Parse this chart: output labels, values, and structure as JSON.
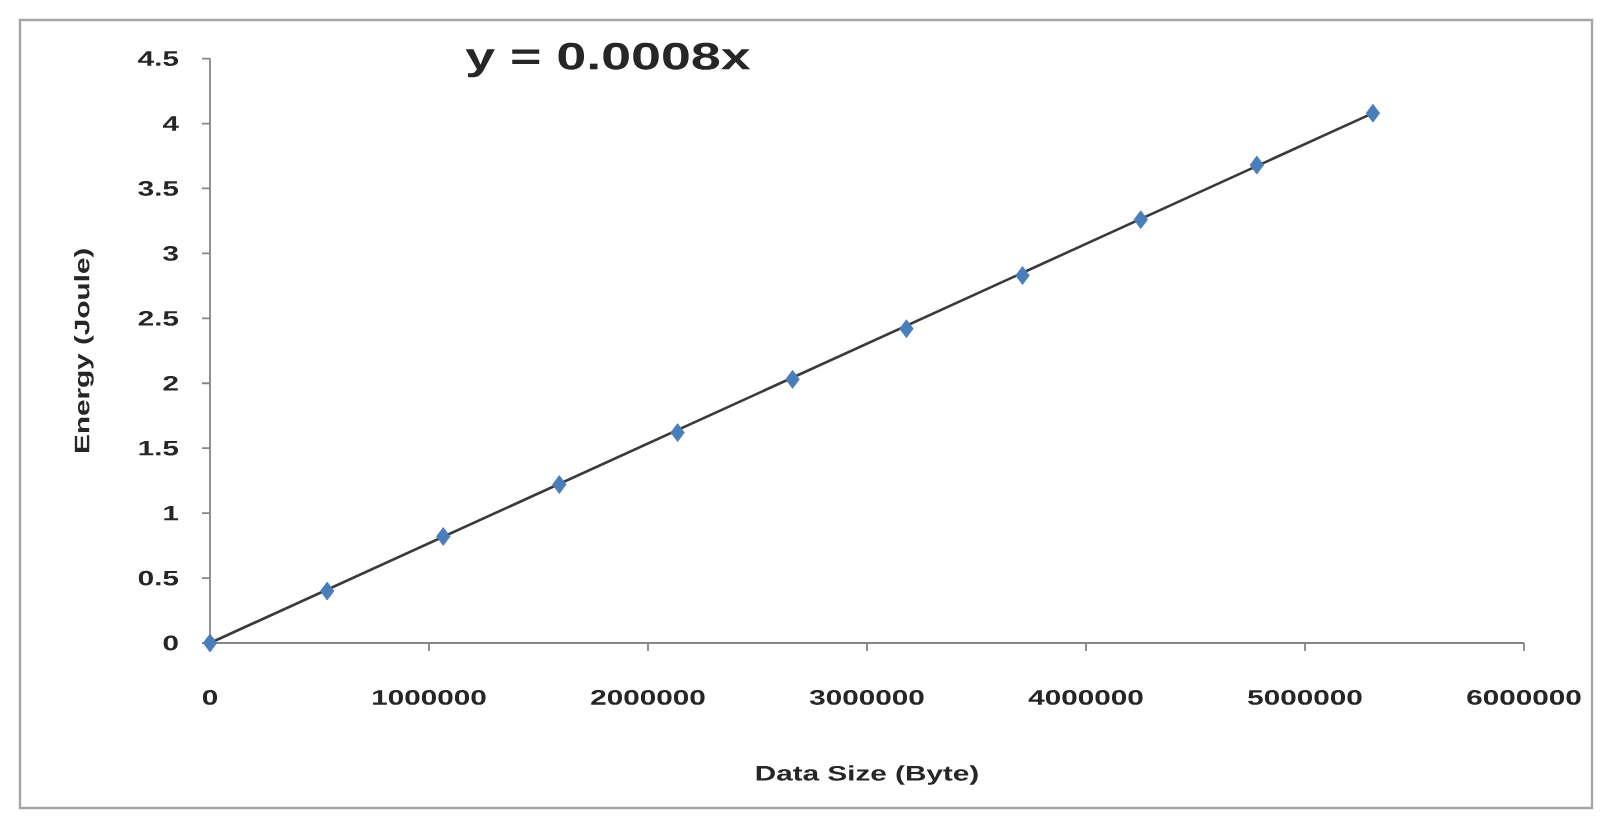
{
  "chart_data": {
    "type": "scatter",
    "xlabel": "Data Size (Byte)",
    "ylabel": "Energy (Joule)",
    "annotations": [
      "y = 0.0008x"
    ],
    "marker": "diamond",
    "x": [
      0,
      535000,
      1065000,
      1595000,
      2135000,
      2660000,
      3180000,
      3710000,
      4250000,
      4780000,
      5310000
    ],
    "series": [
      {
        "color": "#4a7ebb",
        "values": [
          0,
          0.4,
          0.82,
          1.22,
          1.62,
          2.03,
          2.42,
          2.83,
          3.26,
          3.68,
          4.08
        ]
      },
      {
        "type": "line",
        "color": "#3a3a3a",
        "marker": "none",
        "x": [
          0,
          5310000
        ],
        "values": [
          0,
          4.08
        ]
      }
    ],
    "xlim": [
      0,
      6000000
    ],
    "ylim": [
      0,
      4.5
    ],
    "xticks": [
      0,
      1000000,
      2000000,
      3000000,
      4000000,
      5000000,
      6000000
    ],
    "yticks": [
      0,
      0.5,
      1,
      1.5,
      2,
      2.5,
      3,
      3.5,
      4,
      4.5
    ]
  }
}
